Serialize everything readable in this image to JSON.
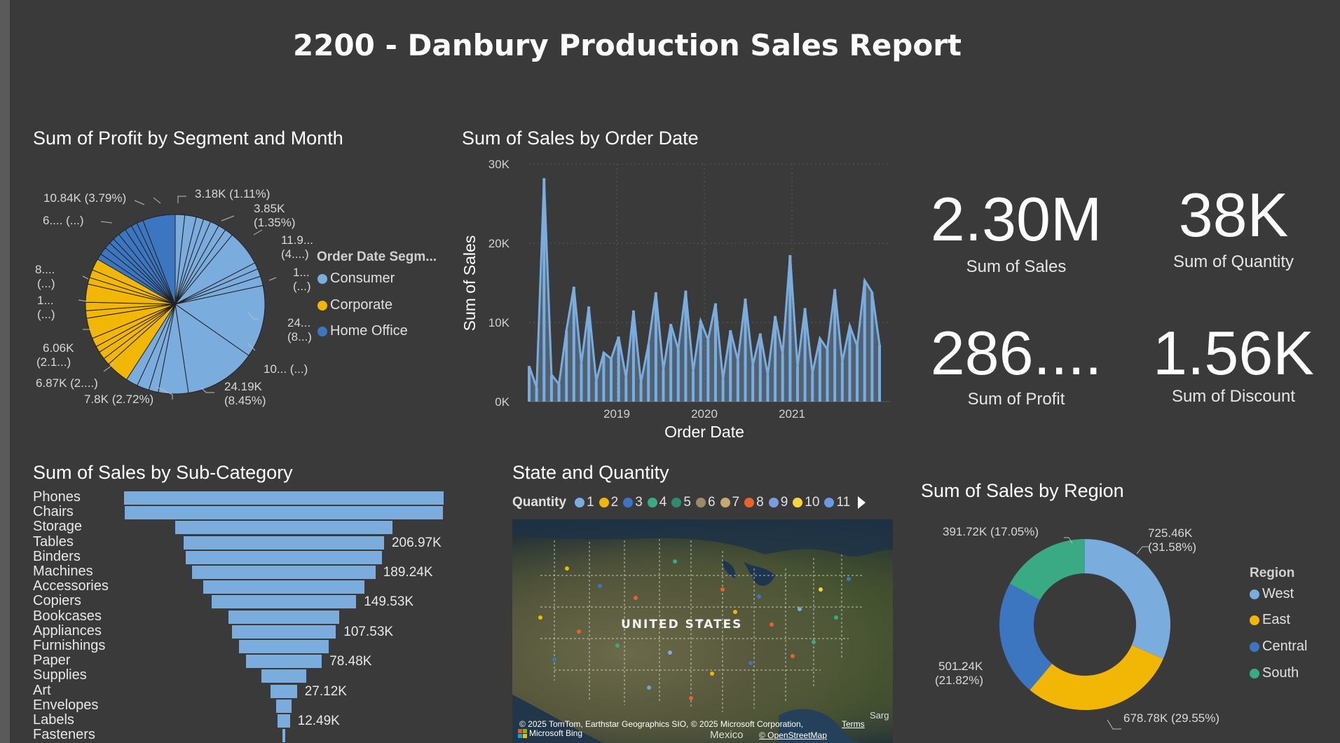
{
  "report": {
    "title": "2200 - Danbury Production Sales Report"
  },
  "profit_pie": {
    "title": "Sum of Profit by Segment and Month",
    "legend_title": "Order Date Segm...",
    "legend": [
      {
        "label": "Consumer",
        "color": "#7aadde"
      },
      {
        "label": "Corporate",
        "color": "#f2b705"
      },
      {
        "label": "Home Office",
        "color": "#3c76c1"
      }
    ],
    "labels": [
      "3.18K (1.11%)",
      "3.85K",
      "(1.35%)",
      "11.9...",
      "(4....)",
      "1...",
      "(...)",
      "24...",
      "(8...)",
      "10... (...)",
      "24.19K",
      "(8.45%)",
      "7.8K (2.72%)",
      "6.87K (2....)",
      "6.06K",
      "(2.1...)",
      "1...",
      "(...)",
      "8....",
      "(...)",
      "6.... (...)",
      "10.84K (3.79%)"
    ]
  },
  "sales_line": {
    "title": "Sum of Sales by Order Date",
    "y_axis_label": "Sum of Sales",
    "x_axis_label": "Order Date",
    "y_ticks": [
      "30K",
      "20K",
      "10K",
      "0K"
    ],
    "x_ticks": [
      "2019",
      "2020",
      "2021"
    ]
  },
  "kpis": {
    "sales": {
      "value": "2.30M",
      "label": "Sum of Sales"
    },
    "quantity": {
      "value": "38K",
      "label": "Sum of Quantity"
    },
    "profit": {
      "value": "286....",
      "label": "Sum of Profit"
    },
    "discount": {
      "value": "1.56K",
      "label": "Sum of Discount"
    }
  },
  "subcategory": {
    "title": "Sum of Sales by Sub-Category",
    "bars": [
      {
        "name": "Phones",
        "value": 330,
        "label": ""
      },
      {
        "name": "Chairs",
        "value": 328,
        "label": ""
      },
      {
        "name": "Storage",
        "value": 224,
        "label": ""
      },
      {
        "name": "Tables",
        "value": 206.97,
        "label": "206.97K"
      },
      {
        "name": "Binders",
        "value": 203,
        "label": ""
      },
      {
        "name": "Machines",
        "value": 189.24,
        "label": "189.24K"
      },
      {
        "name": "Accessories",
        "value": 167,
        "label": ""
      },
      {
        "name": "Copiers",
        "value": 149.53,
        "label": "149.53K"
      },
      {
        "name": "Bookcases",
        "value": 115,
        "label": ""
      },
      {
        "name": "Appliances",
        "value": 107.53,
        "label": "107.53K"
      },
      {
        "name": "Furnishings",
        "value": 92,
        "label": ""
      },
      {
        "name": "Paper",
        "value": 78.48,
        "label": "78.48K"
      },
      {
        "name": "Supplies",
        "value": 46,
        "label": ""
      },
      {
        "name": "Art",
        "value": 27.12,
        "label": "27.12K"
      },
      {
        "name": "Envelopes",
        "value": 16,
        "label": ""
      },
      {
        "name": "Labels",
        "value": 12.49,
        "label": "12.49K"
      },
      {
        "name": "Fasteners",
        "value": 3,
        "label": ""
      }
    ]
  },
  "state_map": {
    "title": "State and Quantity",
    "legend_title": "Quantity",
    "legend": [
      {
        "label": "1",
        "color": "#7aadde"
      },
      {
        "label": "2",
        "color": "#f2b705"
      },
      {
        "label": "3",
        "color": "#3c76c1"
      },
      {
        "label": "4",
        "color": "#3aaa85"
      },
      {
        "label": "5",
        "color": "#2e8b6e"
      },
      {
        "label": "6",
        "color": "#9a8a6a"
      },
      {
        "label": "7",
        "color": "#c6a870"
      },
      {
        "label": "8",
        "color": "#e8632b"
      },
      {
        "label": "9",
        "color": "#7e9be0"
      },
      {
        "label": "10",
        "color": "#f7d33c"
      },
      {
        "label": "11",
        "color": "#6a9ae6"
      }
    ],
    "country_label": "UNITED STATES",
    "mexico_label": "Mexico",
    "credit": "© 2025 TomTom, Earthstar Geographics SIO, © 2025 Microsoft Corporation,",
    "terms": "Terms",
    "bing": "Microsoft Bing",
    "osm": "© OpenStreetMap",
    "edge_text": "Sarg"
  },
  "region": {
    "title": "Sum of Sales by Region",
    "legend_title": "Region",
    "legend": [
      {
        "label": "West",
        "color": "#7aadde"
      },
      {
        "label": "East",
        "color": "#f2b705"
      },
      {
        "label": "Central",
        "color": "#3c76c1"
      },
      {
        "label": "South",
        "color": "#3aaa85"
      }
    ],
    "labels": {
      "west": [
        "725.46K",
        "(31.58%)"
      ],
      "east": [
        "678.78K (29.55%)"
      ],
      "central": [
        "501.24K",
        "(21.82%)"
      ],
      "south": [
        "391.72K (17.05%)"
      ]
    }
  },
  "chart_data": [
    {
      "type": "pie",
      "title": "Sum of Profit by Segment and Month",
      "legend_title": "Order Date Segm...",
      "series": [
        {
          "name": "Consumer",
          "values": [
            3.18,
            3.85,
            2.5,
            2.4,
            3.0,
            2.6,
            2.8,
            11.9,
            2.2,
            2.6,
            3.1,
            24.19,
            24.0,
            10.0,
            3.2,
            4.1,
            4.0
          ]
        },
        {
          "name": "Corporate",
          "values": [
            7.8,
            2.4,
            2.6,
            2.1,
            3.0,
            6.87,
            2.5,
            2.8,
            6.06,
            2.2,
            2.7,
            3.9
          ]
        },
        {
          "name": "Home Office",
          "values": [
            2.0,
            2.5,
            2.2,
            1.8,
            2.3,
            2.6,
            2.4,
            2.0,
            2.2,
            10.84
          ]
        }
      ]
    },
    {
      "type": "area",
      "title": "Sum of Sales by Order Date",
      "xlabel": "Order Date",
      "ylabel": "Sum of Sales",
      "ylim": [
        0,
        30000
      ],
      "x_ticks": [
        "2019",
        "2020",
        "2021"
      ],
      "x": [
        "2018-01",
        "2018-02",
        "2018-03",
        "2018-04",
        "2018-05",
        "2018-06",
        "2018-07",
        "2018-08",
        "2018-09",
        "2018-10",
        "2018-11",
        "2018-12",
        "2019-01",
        "2019-02",
        "2019-03",
        "2019-04",
        "2019-05",
        "2019-06",
        "2019-07",
        "2019-08",
        "2019-09",
        "2019-10",
        "2019-11",
        "2019-12",
        "2020-01",
        "2020-02",
        "2020-03",
        "2020-04",
        "2020-05",
        "2020-06",
        "2020-07",
        "2020-08",
        "2020-09",
        "2020-10",
        "2020-11",
        "2020-12",
        "2021-01",
        "2021-02",
        "2021-03",
        "2021-04",
        "2021-05",
        "2021-06",
        "2021-07",
        "2021-08",
        "2021-09",
        "2021-10",
        "2021-11",
        "2021-12"
      ],
      "values": [
        4500,
        1800,
        28200,
        3400,
        2200,
        9000,
        14500,
        4800,
        12000,
        2600,
        6200,
        5400,
        8200,
        3000,
        11500,
        2400,
        7200,
        13800,
        4000,
        9800,
        6600,
        14000,
        3800,
        10200,
        7800,
        12400,
        2800,
        9000,
        5200,
        13000,
        4600,
        8600,
        3400,
        10800,
        6000,
        18500,
        4400,
        11800,
        3600,
        8000,
        6600,
        14200,
        5000,
        9600,
        7000,
        15300,
        13800,
        7200
      ]
    },
    {
      "type": "bar",
      "title": "Sum of Sales by Sub-Category",
      "categories": [
        "Phones",
        "Chairs",
        "Storage",
        "Tables",
        "Binders",
        "Machines",
        "Accessories",
        "Copiers",
        "Bookcases",
        "Appliances",
        "Furnishings",
        "Paper",
        "Supplies",
        "Art",
        "Envelopes",
        "Labels",
        "Fasteners"
      ],
      "values": [
        330,
        328,
        224,
        206.97,
        203,
        189.24,
        167,
        149.53,
        115,
        107.53,
        92,
        78.48,
        46,
        27.12,
        16,
        12.49,
        3
      ],
      "unit": "K"
    },
    {
      "type": "pie",
      "title": "Sum of Sales by Region",
      "legend_title": "Region",
      "categories": [
        "West",
        "East",
        "Central",
        "South"
      ],
      "values": [
        725.46,
        678.78,
        501.24,
        391.72
      ],
      "unit": "K"
    }
  ]
}
